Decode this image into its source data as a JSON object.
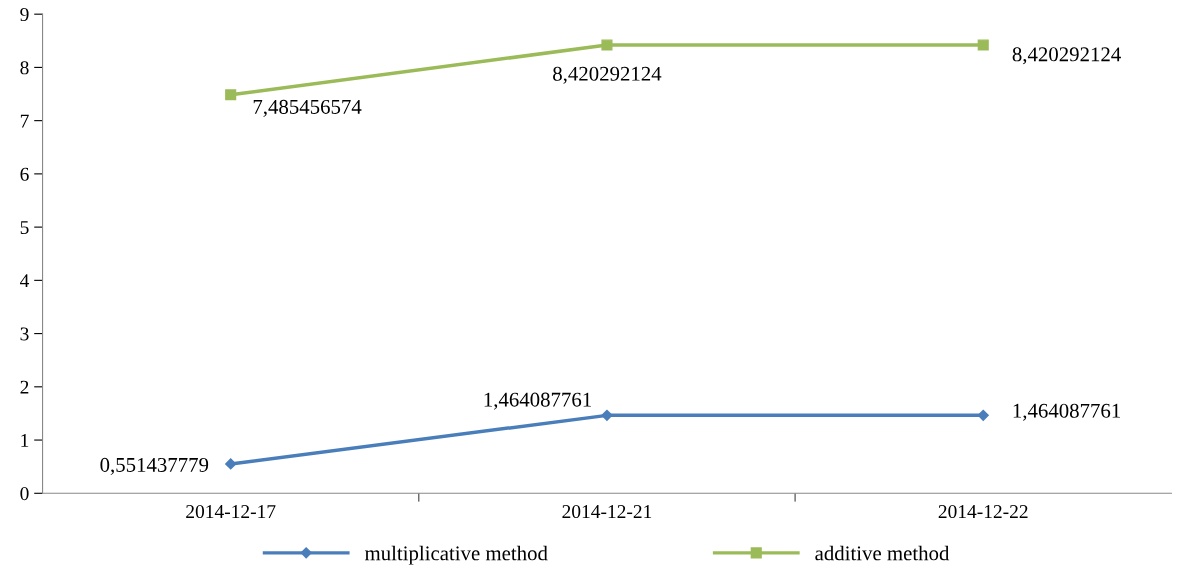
{
  "chart_data": {
    "type": "line",
    "categories": [
      "2014-12-17",
      "2014-12-21",
      "2014-12-22"
    ],
    "series": [
      {
        "name": "multiplicative method",
        "color": "#4a7ebb",
        "marker": "diamond",
        "values": [
          0.551437779,
          1.464087761,
          1.464087761
        ],
        "value_labels": [
          "0,551437779",
          "1,464087761",
          "1,464087761"
        ]
      },
      {
        "name": "additive method",
        "color": "#9bbb59",
        "marker": "square",
        "values": [
          7.485456574,
          8.420292124,
          8.420292124
        ],
        "value_labels": [
          "7,485456574",
          "8,420292124",
          "8,420292124"
        ]
      }
    ],
    "ylim": [
      0,
      9
    ],
    "yticks": [
      0,
      1,
      2,
      3,
      4,
      5,
      6,
      7,
      8,
      9
    ],
    "grid": false,
    "legend": "bottom",
    "line_style": "solid"
  }
}
